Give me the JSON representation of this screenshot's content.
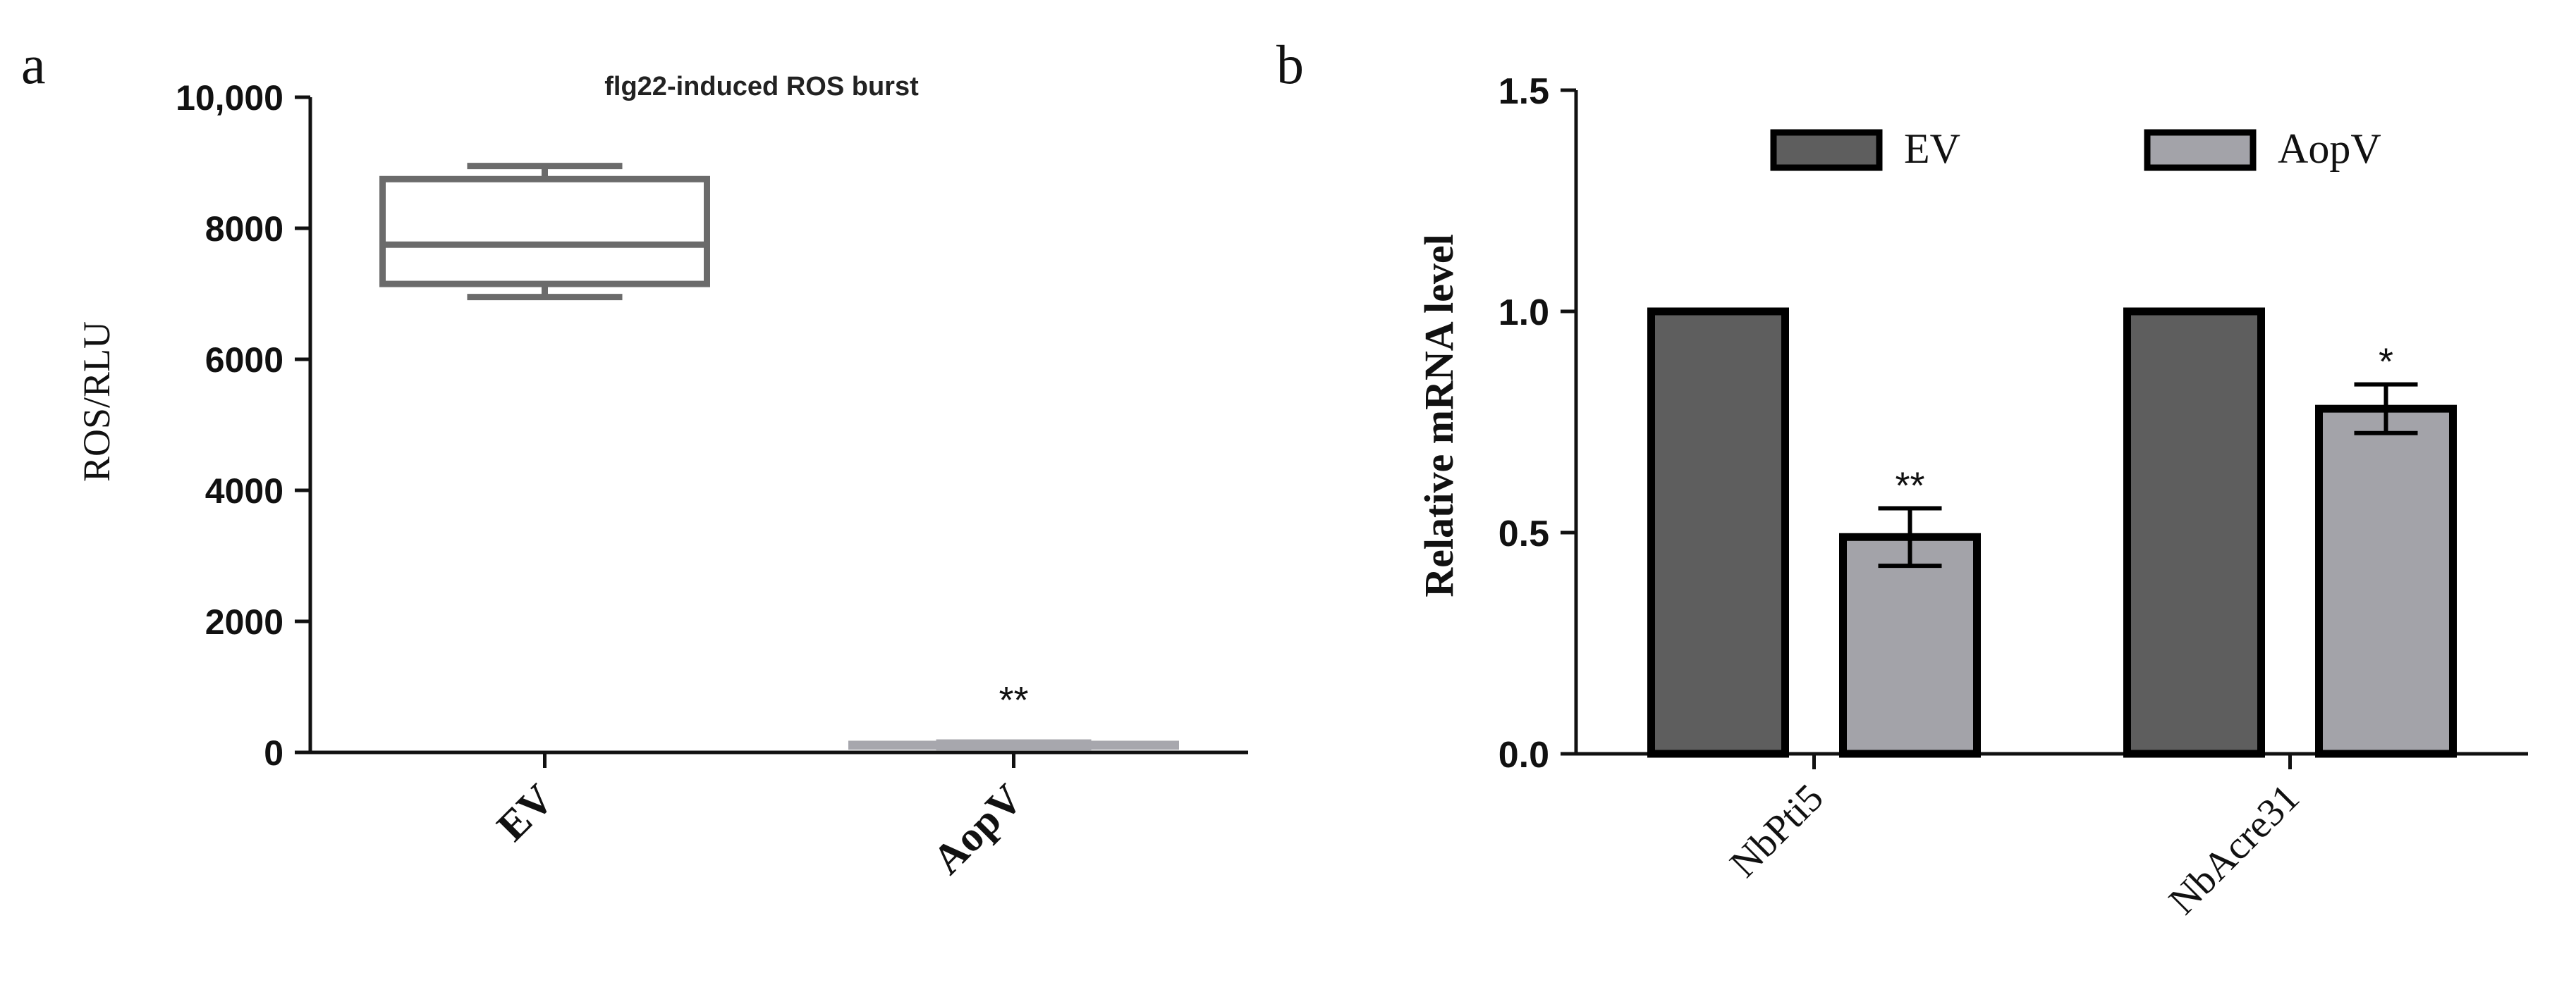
{
  "panels": {
    "a": {
      "letter": "a",
      "chart_data": {
        "type": "box",
        "title": "flg22-induced ROS burst",
        "ylabel": "ROS/RLU",
        "xlabel": "",
        "ylim": [
          0,
          10000
        ],
        "yticks": [
          "0",
          "2000",
          "4000",
          "6000",
          "8000",
          "10,000"
        ],
        "ytick_values": [
          0,
          2000,
          4000,
          6000,
          8000,
          10000
        ],
        "categories": [
          "EV",
          "AopV"
        ],
        "boxes": [
          {
            "category": "EV",
            "min": 6950,
            "q1": 7150,
            "median": 7750,
            "q3": 8750,
            "max": 8950,
            "color": "#6b6b6b",
            "annotation": ""
          },
          {
            "category": "AopV",
            "min": 80,
            "q1": 90,
            "median": 110,
            "q3": 130,
            "max": 150,
            "color": "#a7a7ad",
            "annotation": "**"
          }
        ],
        "grid": false
      }
    },
    "b": {
      "letter": "b",
      "chart_data": {
        "type": "bar",
        "title": "",
        "ylabel": "Relative mRNA level",
        "xlabel": "",
        "ylim": [
          0,
          1.5
        ],
        "yticks": [
          "0.0",
          "0.5",
          "1.0",
          "1.5"
        ],
        "ytick_values": [
          0,
          0.5,
          1.0,
          1.5
        ],
        "categories": [
          "NbPti5",
          "NbAcre31"
        ],
        "series": [
          {
            "name": "EV",
            "color": "#5e5e5e",
            "values": [
              1.0,
              1.0
            ],
            "errors": [
              0,
              0
            ],
            "annotations": [
              "",
              ""
            ]
          },
          {
            "name": "AopV",
            "color": "#a3a3a9",
            "values": [
              0.49,
              0.78
            ],
            "errors": [
              0.065,
              0.055
            ],
            "annotations": [
              "**",
              "*"
            ]
          }
        ],
        "legend": "top",
        "grid": false
      }
    }
  }
}
